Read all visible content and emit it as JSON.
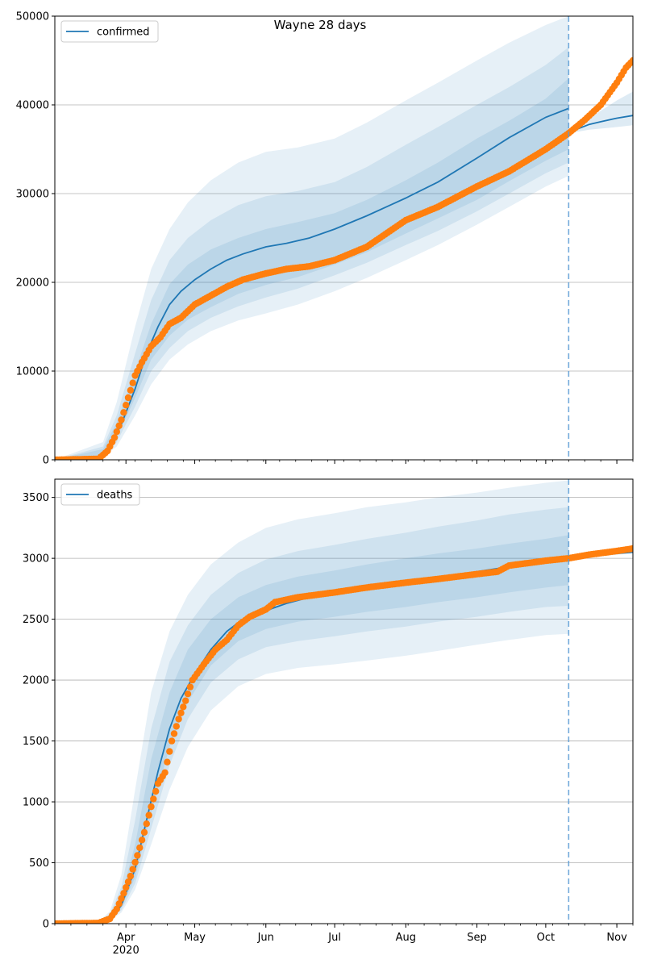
{
  "figure": {
    "title": "Wayne 28 days"
  },
  "colors": {
    "model_line": "#1f77b4",
    "band": "#1f77b4",
    "observed": "#ff7f0e",
    "grid": "#b0b0b0",
    "forecast_line": "#5b9bd5"
  },
  "chart_data": [
    {
      "type": "line",
      "name": "confirmed-panel",
      "legend": {
        "label": "confirmed",
        "position": "top-left"
      },
      "ylim": [
        0,
        50000
      ],
      "yticks": [
        0,
        10000,
        20000,
        30000,
        40000,
        50000
      ],
      "xlim": [
        "2020-03-01",
        "2020-11-08"
      ],
      "forecast_start": "2020-10-11",
      "grid": "y",
      "model": {
        "x": [
          "2020-03-01",
          "2020-03-20",
          "2020-03-25",
          "2020-03-30",
          "2020-04-05",
          "2020-04-10",
          "2020-04-15",
          "2020-04-20",
          "2020-04-25",
          "2020-05-01",
          "2020-05-08",
          "2020-05-15",
          "2020-05-22",
          "2020-06-01",
          "2020-06-10",
          "2020-06-20",
          "2020-07-01",
          "2020-07-15",
          "2020-08-01",
          "2020-08-15",
          "2020-09-01",
          "2020-09-15",
          "2020-10-01",
          "2020-10-11"
        ],
        "y": [
          0,
          200,
          1500,
          4000,
          8000,
          12000,
          15000,
          17500,
          19000,
          20300,
          21500,
          22500,
          23200,
          24000,
          24400,
          25000,
          26000,
          27500,
          29500,
          31300,
          34000,
          36300,
          38600,
          39600
        ]
      },
      "forecast": {
        "x": [
          "2020-10-11",
          "2020-10-15",
          "2020-10-20",
          "2020-10-25",
          "2020-11-01",
          "2020-11-08"
        ],
        "y": [
          36900,
          37300,
          37800,
          38100,
          38500,
          38800
        ]
      },
      "bands": [
        {
          "x": [
            "2020-03-01",
            "2020-03-22",
            "2020-03-28",
            "2020-04-05",
            "2020-04-12",
            "2020-04-20",
            "2020-04-28",
            "2020-05-08",
            "2020-05-20",
            "2020-06-01",
            "2020-06-15",
            "2020-07-01",
            "2020-07-15",
            "2020-08-01",
            "2020-08-15",
            "2020-09-01",
            "2020-09-15",
            "2020-10-01",
            "2020-10-11"
          ],
          "lower": [
            0,
            300,
            1500,
            5000,
            8500,
            11300,
            13000,
            14500,
            15700,
            16500,
            17500,
            19000,
            20500,
            22500,
            24200,
            26500,
            28500,
            30800,
            32000
          ],
          "upper": [
            0,
            2000,
            6500,
            15000,
            21500,
            26000,
            29000,
            31500,
            33500,
            34700,
            35200,
            36200,
            38000,
            40500,
            42500,
            45000,
            47000,
            49000,
            50000
          ]
        },
        {
          "x": [
            "2020-03-01",
            "2020-03-22",
            "2020-03-28",
            "2020-04-05",
            "2020-04-12",
            "2020-04-20",
            "2020-04-28",
            "2020-05-08",
            "2020-05-20",
            "2020-06-01",
            "2020-06-15",
            "2020-07-01",
            "2020-07-15",
            "2020-08-01",
            "2020-08-15",
            "2020-09-01",
            "2020-09-15",
            "2020-10-01",
            "2020-10-11"
          ],
          "lower": [
            0,
            400,
            2000,
            6000,
            10000,
            12600,
            14500,
            16000,
            17300,
            18300,
            19300,
            20800,
            22200,
            24200,
            25800,
            28000,
            30000,
            32300,
            33500
          ],
          "upper": [
            0,
            1500,
            5000,
            12000,
            18000,
            22500,
            25000,
            27000,
            28700,
            29700,
            30300,
            31300,
            33000,
            35500,
            37500,
            40000,
            42000,
            44500,
            46500
          ]
        },
        {
          "x": [
            "2020-03-01",
            "2020-03-22",
            "2020-03-28",
            "2020-04-05",
            "2020-04-12",
            "2020-04-20",
            "2020-04-28",
            "2020-05-08",
            "2020-05-20",
            "2020-06-01",
            "2020-06-15",
            "2020-07-01",
            "2020-07-15",
            "2020-08-01",
            "2020-08-15",
            "2020-09-01",
            "2020-09-15",
            "2020-10-01",
            "2020-10-11"
          ],
          "lower": [
            0,
            500,
            2500,
            7000,
            11300,
            14000,
            15800,
            17200,
            18700,
            19700,
            20600,
            22000,
            23400,
            25500,
            27200,
            29300,
            31400,
            33700,
            35000
          ],
          "upper": [
            0,
            1200,
            4200,
            10000,
            15300,
            19800,
            22000,
            23700,
            25000,
            26000,
            26800,
            27800,
            29300,
            31500,
            33500,
            36200,
            38200,
            40700,
            43000
          ]
        }
      ],
      "forecast_band": {
        "x": [
          "2020-10-11",
          "2020-10-20",
          "2020-11-01",
          "2020-11-08"
        ],
        "lower": [
          36800,
          37200,
          37500,
          37700
        ],
        "upper": [
          37000,
          38500,
          40500,
          41500
        ]
      },
      "observed": {
        "x": [
          "2020-03-01",
          "2020-03-20",
          "2020-03-24",
          "2020-03-27",
          "2020-03-30",
          "2020-04-02",
          "2020-04-05",
          "2020-04-08",
          "2020-04-12",
          "2020-04-16",
          "2020-04-20",
          "2020-04-25",
          "2020-05-01",
          "2020-05-08",
          "2020-05-15",
          "2020-05-22",
          "2020-06-01",
          "2020-06-10",
          "2020-06-20",
          "2020-07-01",
          "2020-07-15",
          "2020-08-01",
          "2020-08-15",
          "2020-09-01",
          "2020-09-15",
          "2020-10-01",
          "2020-10-11",
          "2020-10-18",
          "2020-10-25",
          "2020-11-01",
          "2020-11-05",
          "2020-11-08"
        ],
        "y": [
          0,
          100,
          1000,
          2500,
          4500,
          7000,
          9500,
          11000,
          12800,
          13800,
          15300,
          16000,
          17500,
          18500,
          19500,
          20300,
          21000,
          21500,
          21800,
          22500,
          24000,
          27000,
          28500,
          30800,
          32500,
          35000,
          36800,
          38300,
          40000,
          42500,
          44200,
          45000
        ]
      }
    },
    {
      "type": "line",
      "name": "deaths-panel",
      "legend": {
        "label": "deaths",
        "position": "top-left"
      },
      "ylim": [
        0,
        3650
      ],
      "yticks": [
        0,
        500,
        1000,
        1500,
        2000,
        2500,
        3000,
        3500
      ],
      "xlim": [
        "2020-03-01",
        "2020-11-08"
      ],
      "forecast_start": "2020-10-11",
      "grid": "y",
      "xticks": [
        {
          "date": "2020-04-01",
          "label": "Apr",
          "sublabel": "2020"
        },
        {
          "date": "2020-05-01",
          "label": "May"
        },
        {
          "date": "2020-06-01",
          "label": "Jun"
        },
        {
          "date": "2020-07-01",
          "label": "Jul"
        },
        {
          "date": "2020-08-01",
          "label": "Aug"
        },
        {
          "date": "2020-09-01",
          "label": "Sep"
        },
        {
          "date": "2020-10-01",
          "label": "Oct"
        },
        {
          "date": "2020-11-01",
          "label": "Nov"
        }
      ],
      "model": {
        "x": [
          "2020-03-01",
          "2020-03-20",
          "2020-03-25",
          "2020-03-30",
          "2020-04-05",
          "2020-04-10",
          "2020-04-15",
          "2020-04-20",
          "2020-04-25",
          "2020-05-01",
          "2020-05-08",
          "2020-05-15",
          "2020-05-22",
          "2020-06-01",
          "2020-06-10",
          "2020-06-20",
          "2020-07-01",
          "2020-07-15",
          "2020-08-01",
          "2020-08-15",
          "2020-09-01",
          "2020-09-15",
          "2020-10-01",
          "2020-10-11"
        ],
        "y": [
          0,
          5,
          40,
          150,
          450,
          850,
          1250,
          1600,
          1850,
          2050,
          2250,
          2400,
          2500,
          2570,
          2630,
          2680,
          2720,
          2760,
          2800,
          2840,
          2890,
          2930,
          2980,
          3010
        ]
      },
      "forecast": {
        "x": [
          "2020-10-11",
          "2020-10-20",
          "2020-11-01",
          "2020-11-08"
        ],
        "y": [
          3005,
          3020,
          3040,
          3050
        ]
      },
      "bands": [
        {
          "x": [
            "2020-03-01",
            "2020-03-20",
            "2020-03-25",
            "2020-03-30",
            "2020-04-05",
            "2020-04-12",
            "2020-04-20",
            "2020-04-28",
            "2020-05-08",
            "2020-05-20",
            "2020-06-01",
            "2020-06-15",
            "2020-07-01",
            "2020-07-15",
            "2020-08-01",
            "2020-08-15",
            "2020-09-01",
            "2020-09-15",
            "2020-10-01",
            "2020-10-11"
          ],
          "lower": [
            0,
            3,
            25,
            90,
            280,
            650,
            1100,
            1450,
            1750,
            1950,
            2050,
            2100,
            2130,
            2160,
            2200,
            2240,
            2290,
            2330,
            2370,
            2380
          ],
          "upper": [
            0,
            15,
            100,
            400,
            1100,
            1900,
            2400,
            2700,
            2950,
            3130,
            3250,
            3320,
            3370,
            3420,
            3460,
            3500,
            3540,
            3580,
            3620,
            3640
          ]
        },
        {
          "x": [
            "2020-03-01",
            "2020-03-20",
            "2020-03-25",
            "2020-03-30",
            "2020-04-05",
            "2020-04-12",
            "2020-04-20",
            "2020-04-28",
            "2020-05-08",
            "2020-05-20",
            "2020-06-01",
            "2020-06-15",
            "2020-07-01",
            "2020-07-15",
            "2020-08-01",
            "2020-08-15",
            "2020-09-01",
            "2020-09-15",
            "2020-10-01",
            "2020-10-11"
          ],
          "lower": [
            0,
            4,
            30,
            110,
            330,
            780,
            1300,
            1680,
            1980,
            2170,
            2270,
            2320,
            2360,
            2400,
            2440,
            2480,
            2520,
            2560,
            2600,
            2610
          ],
          "upper": [
            0,
            10,
            80,
            300,
            850,
            1600,
            2150,
            2450,
            2700,
            2880,
            2990,
            3060,
            3110,
            3160,
            3210,
            3260,
            3310,
            3360,
            3400,
            3420
          ]
        },
        {
          "x": [
            "2020-03-01",
            "2020-03-20",
            "2020-03-25",
            "2020-03-30",
            "2020-04-05",
            "2020-04-12",
            "2020-04-20",
            "2020-04-28",
            "2020-05-08",
            "2020-05-20",
            "2020-06-01",
            "2020-06-15",
            "2020-07-01",
            "2020-07-15",
            "2020-08-01",
            "2020-08-15",
            "2020-09-01",
            "2020-09-15",
            "2020-10-01",
            "2020-10-11"
          ],
          "lower": [
            0,
            5,
            35,
            130,
            380,
            900,
            1450,
            1820,
            2120,
            2320,
            2420,
            2480,
            2520,
            2560,
            2600,
            2640,
            2680,
            2720,
            2760,
            2780
          ],
          "upper": [
            0,
            8,
            65,
            230,
            650,
            1350,
            1900,
            2250,
            2500,
            2680,
            2780,
            2850,
            2900,
            2950,
            3000,
            3040,
            3080,
            3120,
            3160,
            3190
          ]
        }
      ],
      "forecast_band": {
        "x": [
          "2020-10-11",
          "2020-10-20",
          "2020-11-01",
          "2020-11-08"
        ],
        "lower": [
          3000,
          3010,
          3030,
          3040
        ],
        "upper": [
          3010,
          3030,
          3055,
          3065
        ]
      },
      "observed": {
        "x": [
          "2020-03-01",
          "2020-03-20",
          "2020-03-25",
          "2020-03-28",
          "2020-03-31",
          "2020-04-03",
          "2020-04-06",
          "2020-04-09",
          "2020-04-12",
          "2020-04-15",
          "2020-04-18",
          "2020-04-21",
          "2020-04-24",
          "2020-04-27",
          "2020-04-30",
          "2020-05-05",
          "2020-05-10",
          "2020-05-15",
          "2020-05-20",
          "2020-05-25",
          "2020-06-01",
          "2020-06-05",
          "2020-06-15",
          "2020-07-01",
          "2020-07-15",
          "2020-08-01",
          "2020-08-15",
          "2020-09-01",
          "2020-09-10",
          "2020-09-15",
          "2020-10-01",
          "2020-10-11",
          "2020-10-20",
          "2020-11-01",
          "2020-11-08"
        ],
        "y": [
          0,
          5,
          40,
          120,
          250,
          390,
          560,
          750,
          960,
          1150,
          1240,
          1500,
          1680,
          1830,
          2000,
          2130,
          2250,
          2330,
          2450,
          2520,
          2580,
          2640,
          2680,
          2720,
          2760,
          2800,
          2830,
          2870,
          2890,
          2940,
          2980,
          3000,
          3030,
          3060,
          3080
        ]
      }
    }
  ]
}
